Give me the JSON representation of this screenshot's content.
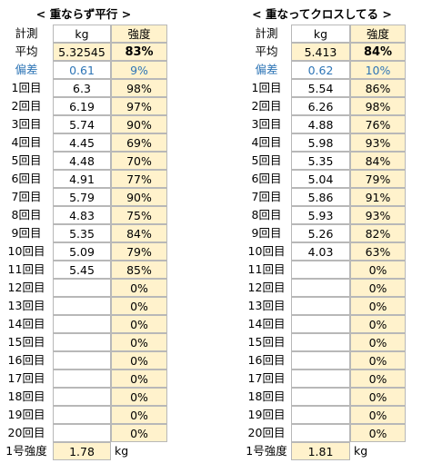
{
  "tables": [
    {
      "title": "< 重ならず平行 >",
      "header": [
        "計測",
        "kg",
        "強度"
      ],
      "average": [
        "平均",
        "5.32545",
        "83%"
      ],
      "deviation": [
        "偏差",
        "0.61",
        "9%"
      ],
      "rows": [
        [
          "1回目",
          "6.3",
          "98%"
        ],
        [
          "2回目",
          "6.19",
          "97%"
        ],
        [
          "3回目",
          "5.74",
          "90%"
        ],
        [
          "4回目",
          "4.45",
          "69%"
        ],
        [
          "5回目",
          "4.48",
          "70%"
        ],
        [
          "6回目",
          "4.91",
          "77%"
        ],
        [
          "7回目",
          "5.79",
          "90%"
        ],
        [
          "8回目",
          "4.83",
          "75%"
        ],
        [
          "9回目",
          "5.35",
          "84%"
        ],
        [
          "10回目",
          "5.09",
          "79%"
        ],
        [
          "11回目",
          "5.45",
          "85%"
        ],
        [
          "12回目",
          null,
          "0%"
        ],
        [
          "13回目",
          null,
          "0%"
        ],
        [
          "14回目",
          null,
          "0%"
        ],
        [
          "15回目",
          null,
          "0%"
        ],
        [
          "16回目",
          null,
          "0%"
        ],
        [
          "17回目",
          null,
          "0%"
        ],
        [
          "18回目",
          null,
          "0%"
        ],
        [
          "19回目",
          null,
          "0%"
        ],
        [
          "20回目",
          null,
          "0%"
        ]
      ],
      "footer": [
        "1号強度",
        "1.78",
        "kg"
      ]
    },
    {
      "title": "< 重なってクロスしてる >",
      "header": [
        "計測",
        "kg",
        "強度"
      ],
      "average": [
        "平均",
        "5.413",
        "84%"
      ],
      "deviation": [
        "偏差",
        "0.62",
        "10%"
      ],
      "rows": [
        [
          "1回目",
          "5.54",
          "86%"
        ],
        [
          "2回目",
          "6.26",
          "98%"
        ],
        [
          "3回目",
          "4.88",
          "76%"
        ],
        [
          "4回目",
          "5.98",
          "93%"
        ],
        [
          "5回目",
          "5.35",
          "84%"
        ],
        [
          "6回目",
          "5.04",
          "79%"
        ],
        [
          "7回目",
          "5.86",
          "91%"
        ],
        [
          "8回目",
          "5.93",
          "93%"
        ],
        [
          "9回目",
          "5.26",
          "82%"
        ],
        [
          "10回目",
          "4.03",
          "63%"
        ],
        [
          "11回目",
          null,
          "0%"
        ],
        [
          "12回目",
          null,
          "0%"
        ],
        [
          "13回目",
          null,
          "0%"
        ],
        [
          "14回目",
          null,
          "0%"
        ],
        [
          "15回目",
          null,
          "0%"
        ],
        [
          "16回目",
          null,
          "0%"
        ],
        [
          "17回目",
          null,
          "0%"
        ],
        [
          "18回目",
          null,
          "0%"
        ],
        [
          "19回目",
          null,
          "0%"
        ],
        [
          "20回目",
          null,
          "0%"
        ]
      ],
      "footer": [
        "1号強度",
        "1.81",
        "kg"
      ]
    }
  ]
}
